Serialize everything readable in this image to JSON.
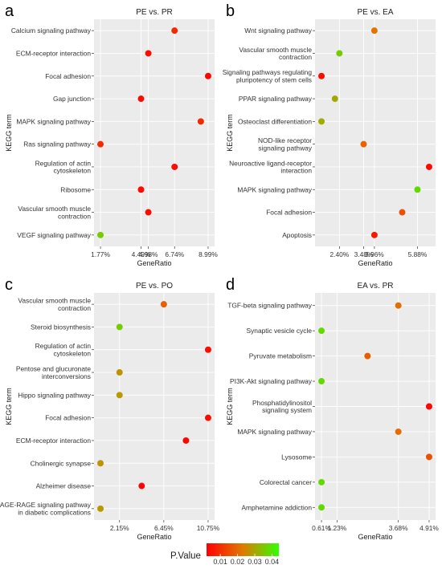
{
  "chart_data": [
    {
      "type": "scatter",
      "panel_letter": "a",
      "title": "PE vs. PR",
      "xlabel": "GeneRatio",
      "ylabel": "KEGG term",
      "x_ticks": [
        1.77,
        4.49,
        4.98,
        6.74,
        8.99
      ],
      "x_tick_labels": [
        "1.77%",
        "4.49%",
        "4.98%",
        "6.74%",
        "8.99%"
      ],
      "terms": [
        "Calcium signaling pathway",
        "ECM-receptor interaction",
        "Focal adhesion",
        "Gap junction",
        "MAPK signaling pathway",
        "Ras signaling pathway",
        "Regulation of actin\ncytoskeleton",
        "Ribosome",
        "Vascular smooth muscle\ncontraction",
        "VEGF signaling pathway"
      ],
      "x": [
        6.74,
        4.98,
        8.99,
        4.49,
        8.5,
        1.77,
        6.74,
        4.49,
        4.98,
        1.77
      ],
      "p_value": [
        0.009,
        0.004,
        0.003,
        0.004,
        0.009,
        0.009,
        0.004,
        0.004,
        0.004,
        0.036
      ]
    },
    {
      "type": "scatter",
      "panel_letter": "b",
      "title": "PE vs. EA",
      "xlabel": "GeneRatio",
      "ylabel": "KEGG term",
      "x_ticks": [
        2.4,
        3.48,
        3.96,
        5.88
      ],
      "x_tick_labels": [
        "2.40%",
        "3.48%",
        "3.96%",
        "5.88%"
      ],
      "terms": [
        "Wnt signaling pathway",
        "Vascular smooth muscle\ncontraction",
        "Signaling pathways regulating\npluripotency of stem cells",
        "PPAR signaling pathway",
        "Osteoclast differentiation",
        "NOD-like receptor\nsignaling pathway",
        "Neuroactive ligand-receptor\ninteraction",
        "MAPK signaling pathway",
        "Focal adhesion",
        "Apoptosis"
      ],
      "x": [
        3.96,
        2.4,
        1.6,
        2.2,
        1.6,
        3.48,
        6.4,
        5.88,
        5.2,
        3.96
      ],
      "p_value": [
        0.022,
        0.036,
        0.004,
        0.03,
        0.031,
        0.019,
        0.004,
        0.038,
        0.016,
        0.006
      ]
    },
    {
      "type": "scatter",
      "panel_letter": "c",
      "title": "PE vs. PO",
      "xlabel": "GeneRatio",
      "ylabel": "KEGG term",
      "x_ticks": [
        2.15,
        6.45,
        10.75
      ],
      "x_tick_labels": [
        "2.15%",
        "6.45%",
        "10.75%"
      ],
      "terms": [
        "Vascular smooth muscle\ncontraction",
        "Steroid biosynthesis",
        "Regulation of actin\ncytoskeleton",
        "Pentose and glucuronate\ninterconversions",
        "Hippo signaling pathway",
        "Focal adhesion",
        "ECM-receptor interaction",
        "Cholinergic synapse",
        "Alzheimer disease",
        "AGE-RAGE signaling pathway\nin diabetic complications"
      ],
      "x": [
        6.45,
        2.15,
        10.75,
        2.15,
        2.15,
        10.75,
        8.6,
        0.3,
        4.3,
        0.3
      ],
      "p_value": [
        0.018,
        0.036,
        0.004,
        0.027,
        0.028,
        0.004,
        0.003,
        0.027,
        0.003,
        0.028
      ]
    },
    {
      "type": "scatter",
      "panel_letter": "d",
      "title": "EA vs. PR",
      "xlabel": "GeneRatio",
      "ylabel": "KEGG term",
      "x_ticks": [
        0.61,
        1.23,
        3.68,
        4.91
      ],
      "x_tick_labels": [
        "0.61%",
        "1.23%",
        "3.68%",
        "4.91%"
      ],
      "terms": [
        "TGF-beta signaling pathway",
        "Synaptic vesicle cycle",
        "Pyruvate metabolism",
        "PI3K-Akt signaling pathway",
        "Phosphatidylinositol\nsignaling system",
        "MAPK signaling pathway",
        "Lysosome",
        "Colorectal cancer",
        "Amphetamine addiction"
      ],
      "x": [
        3.68,
        0.61,
        2.45,
        0.61,
        4.91,
        3.68,
        4.91,
        0.61,
        0.61
      ],
      "p_value": [
        0.021,
        0.038,
        0.018,
        0.038,
        0.003,
        0.021,
        0.016,
        0.038,
        0.038
      ]
    }
  ],
  "legend": {
    "title": "P.Value",
    "tick_values": [
      0.01,
      0.02,
      0.03,
      0.04
    ],
    "tick_labels": [
      "0.01",
      "0.02",
      "0.03",
      "0.04"
    ],
    "range": [
      0.002,
      0.044
    ],
    "colors": [
      "#ff0000",
      "#e07a00",
      "#33ff00"
    ]
  },
  "style": {
    "panel_background": "#ebebeb",
    "gridline_color": "#ffffff"
  }
}
